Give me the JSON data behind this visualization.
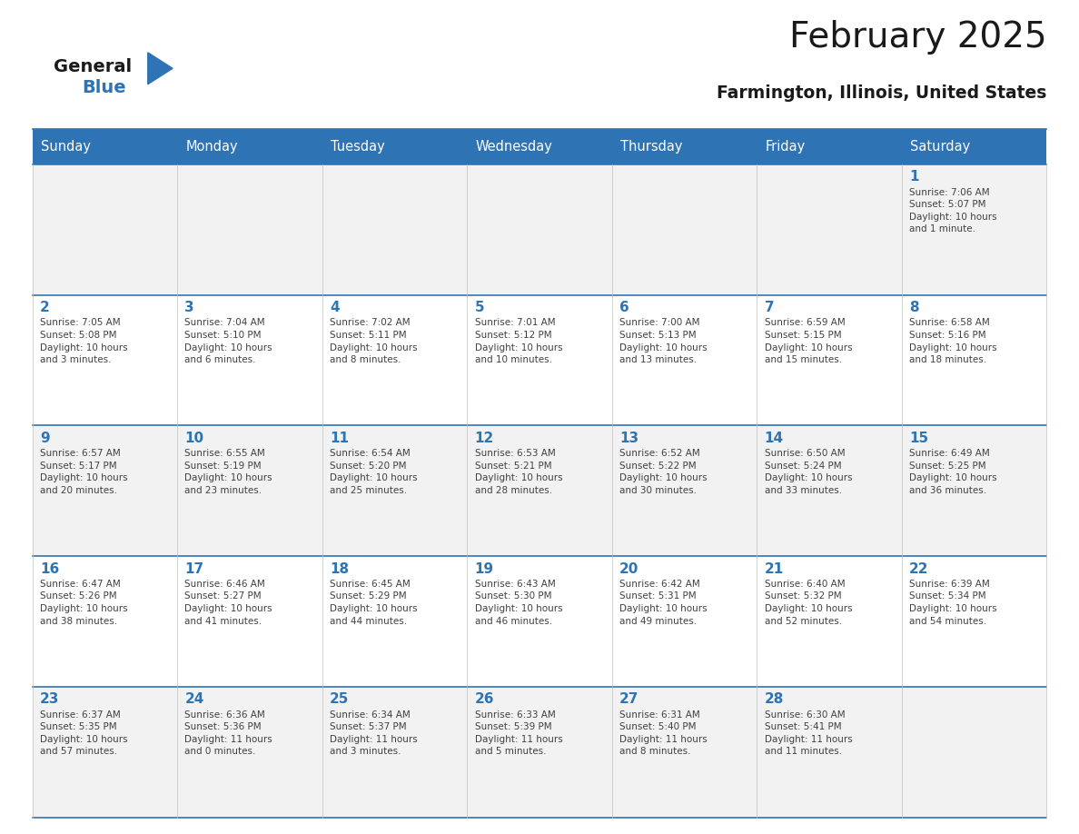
{
  "title": "February 2025",
  "subtitle": "Farmington, Illinois, United States",
  "days_of_week": [
    "Sunday",
    "Monday",
    "Tuesday",
    "Wednesday",
    "Thursday",
    "Friday",
    "Saturday"
  ],
  "header_bg": "#2E74B5",
  "header_text_color": "#FFFFFF",
  "cell_bg_odd_row": "#F2F2F2",
  "cell_bg_even_row": "#FFFFFF",
  "cell_border_color": "#2E74B5",
  "day_number_color": "#2E74B5",
  "info_text_color": "#404040",
  "title_color": "#1A1A1A",
  "subtitle_color": "#1A1A1A",
  "logo_general_color": "#1A1A1A",
  "logo_blue_color": "#2E74B5",
  "calendar_data": [
    [
      {
        "day": null,
        "info": ""
      },
      {
        "day": null,
        "info": ""
      },
      {
        "day": null,
        "info": ""
      },
      {
        "day": null,
        "info": ""
      },
      {
        "day": null,
        "info": ""
      },
      {
        "day": null,
        "info": ""
      },
      {
        "day": 1,
        "info": "Sunrise: 7:06 AM\nSunset: 5:07 PM\nDaylight: 10 hours\nand 1 minute."
      }
    ],
    [
      {
        "day": 2,
        "info": "Sunrise: 7:05 AM\nSunset: 5:08 PM\nDaylight: 10 hours\nand 3 minutes."
      },
      {
        "day": 3,
        "info": "Sunrise: 7:04 AM\nSunset: 5:10 PM\nDaylight: 10 hours\nand 6 minutes."
      },
      {
        "day": 4,
        "info": "Sunrise: 7:02 AM\nSunset: 5:11 PM\nDaylight: 10 hours\nand 8 minutes."
      },
      {
        "day": 5,
        "info": "Sunrise: 7:01 AM\nSunset: 5:12 PM\nDaylight: 10 hours\nand 10 minutes."
      },
      {
        "day": 6,
        "info": "Sunrise: 7:00 AM\nSunset: 5:13 PM\nDaylight: 10 hours\nand 13 minutes."
      },
      {
        "day": 7,
        "info": "Sunrise: 6:59 AM\nSunset: 5:15 PM\nDaylight: 10 hours\nand 15 minutes."
      },
      {
        "day": 8,
        "info": "Sunrise: 6:58 AM\nSunset: 5:16 PM\nDaylight: 10 hours\nand 18 minutes."
      }
    ],
    [
      {
        "day": 9,
        "info": "Sunrise: 6:57 AM\nSunset: 5:17 PM\nDaylight: 10 hours\nand 20 minutes."
      },
      {
        "day": 10,
        "info": "Sunrise: 6:55 AM\nSunset: 5:19 PM\nDaylight: 10 hours\nand 23 minutes."
      },
      {
        "day": 11,
        "info": "Sunrise: 6:54 AM\nSunset: 5:20 PM\nDaylight: 10 hours\nand 25 minutes."
      },
      {
        "day": 12,
        "info": "Sunrise: 6:53 AM\nSunset: 5:21 PM\nDaylight: 10 hours\nand 28 minutes."
      },
      {
        "day": 13,
        "info": "Sunrise: 6:52 AM\nSunset: 5:22 PM\nDaylight: 10 hours\nand 30 minutes."
      },
      {
        "day": 14,
        "info": "Sunrise: 6:50 AM\nSunset: 5:24 PM\nDaylight: 10 hours\nand 33 minutes."
      },
      {
        "day": 15,
        "info": "Sunrise: 6:49 AM\nSunset: 5:25 PM\nDaylight: 10 hours\nand 36 minutes."
      }
    ],
    [
      {
        "day": 16,
        "info": "Sunrise: 6:47 AM\nSunset: 5:26 PM\nDaylight: 10 hours\nand 38 minutes."
      },
      {
        "day": 17,
        "info": "Sunrise: 6:46 AM\nSunset: 5:27 PM\nDaylight: 10 hours\nand 41 minutes."
      },
      {
        "day": 18,
        "info": "Sunrise: 6:45 AM\nSunset: 5:29 PM\nDaylight: 10 hours\nand 44 minutes."
      },
      {
        "day": 19,
        "info": "Sunrise: 6:43 AM\nSunset: 5:30 PM\nDaylight: 10 hours\nand 46 minutes."
      },
      {
        "day": 20,
        "info": "Sunrise: 6:42 AM\nSunset: 5:31 PM\nDaylight: 10 hours\nand 49 minutes."
      },
      {
        "day": 21,
        "info": "Sunrise: 6:40 AM\nSunset: 5:32 PM\nDaylight: 10 hours\nand 52 minutes."
      },
      {
        "day": 22,
        "info": "Sunrise: 6:39 AM\nSunset: 5:34 PM\nDaylight: 10 hours\nand 54 minutes."
      }
    ],
    [
      {
        "day": 23,
        "info": "Sunrise: 6:37 AM\nSunset: 5:35 PM\nDaylight: 10 hours\nand 57 minutes."
      },
      {
        "day": 24,
        "info": "Sunrise: 6:36 AM\nSunset: 5:36 PM\nDaylight: 11 hours\nand 0 minutes."
      },
      {
        "day": 25,
        "info": "Sunrise: 6:34 AM\nSunset: 5:37 PM\nDaylight: 11 hours\nand 3 minutes."
      },
      {
        "day": 26,
        "info": "Sunrise: 6:33 AM\nSunset: 5:39 PM\nDaylight: 11 hours\nand 5 minutes."
      },
      {
        "day": 27,
        "info": "Sunrise: 6:31 AM\nSunset: 5:40 PM\nDaylight: 11 hours\nand 8 minutes."
      },
      {
        "day": 28,
        "info": "Sunrise: 6:30 AM\nSunset: 5:41 PM\nDaylight: 11 hours\nand 11 minutes."
      },
      {
        "day": null,
        "info": ""
      }
    ]
  ]
}
